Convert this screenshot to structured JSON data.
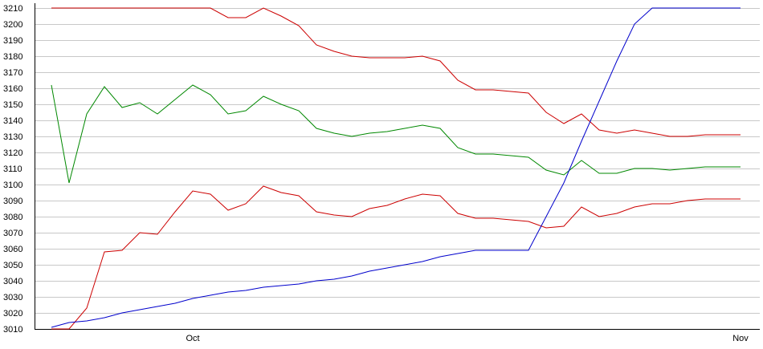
{
  "chart_data": {
    "type": "line",
    "title": "",
    "xlabel": "",
    "ylabel": "",
    "ylim": [
      3010,
      3210
    ],
    "y_ticks": [
      3010,
      3020,
      3030,
      3040,
      3050,
      3060,
      3070,
      3080,
      3090,
      3100,
      3110,
      3120,
      3130,
      3140,
      3150,
      3160,
      3170,
      3180,
      3190,
      3200,
      3210
    ],
    "x_tick_labels": [
      {
        "label": "Oct",
        "index": 8
      },
      {
        "label": "Nov",
        "index": 39
      }
    ],
    "grid": true,
    "legend": "none",
    "series": [
      {
        "color": "#cc0000",
        "values": [
          3210,
          3210,
          3210,
          3210,
          3210,
          3210,
          3210,
          3210,
          3210,
          3210,
          3204,
          3204,
          3210,
          3205,
          3199,
          3187,
          3183,
          3180,
          3179,
          3179,
          3179,
          3180,
          3177,
          3165,
          3159,
          3159,
          3158,
          3157,
          3145,
          3138,
          3144,
          3134,
          3132,
          3134,
          3132,
          3130,
          3130,
          3131,
          3131,
          3131
        ]
      },
      {
        "color": "#008800",
        "values": [
          3162,
          3101,
          3144,
          3161,
          3148,
          3151,
          3144,
          3153,
          3162,
          3156,
          3144,
          3146,
          3155,
          3150,
          3146,
          3135,
          3132,
          3130,
          3132,
          3133,
          3135,
          3137,
          3135,
          3123,
          3119,
          3119,
          3118,
          3117,
          3109,
          3106,
          3115,
          3107,
          3107,
          3110,
          3110,
          3109,
          3110,
          3111,
          3111,
          3111
        ]
      },
      {
        "color": "#cc0000",
        "values": [
          3010,
          3010,
          3023,
          3058,
          3059,
          3070,
          3069,
          3083,
          3096,
          3094,
          3084,
          3088,
          3099,
          3095,
          3093,
          3083,
          3081,
          3080,
          3085,
          3087,
          3091,
          3094,
          3093,
          3082,
          3079,
          3079,
          3078,
          3077,
          3073,
          3074,
          3086,
          3080,
          3082,
          3086,
          3088,
          3088,
          3090,
          3091,
          3091,
          3091
        ]
      },
      {
        "color": "#0000cc",
        "values": [
          3011,
          3014,
          3015,
          3017,
          3020,
          3022,
          3024,
          3026,
          3029,
          3031,
          3033,
          3034,
          3036,
          3037,
          3038,
          3040,
          3041,
          3043,
          3046,
          3048,
          3050,
          3052,
          3055,
          3057,
          3059,
          3059,
          3059,
          3059,
          3080,
          3101,
          3127,
          3152,
          3177,
          3200,
          3210,
          3210,
          3210,
          3210,
          3210,
          3210
        ]
      }
    ]
  }
}
